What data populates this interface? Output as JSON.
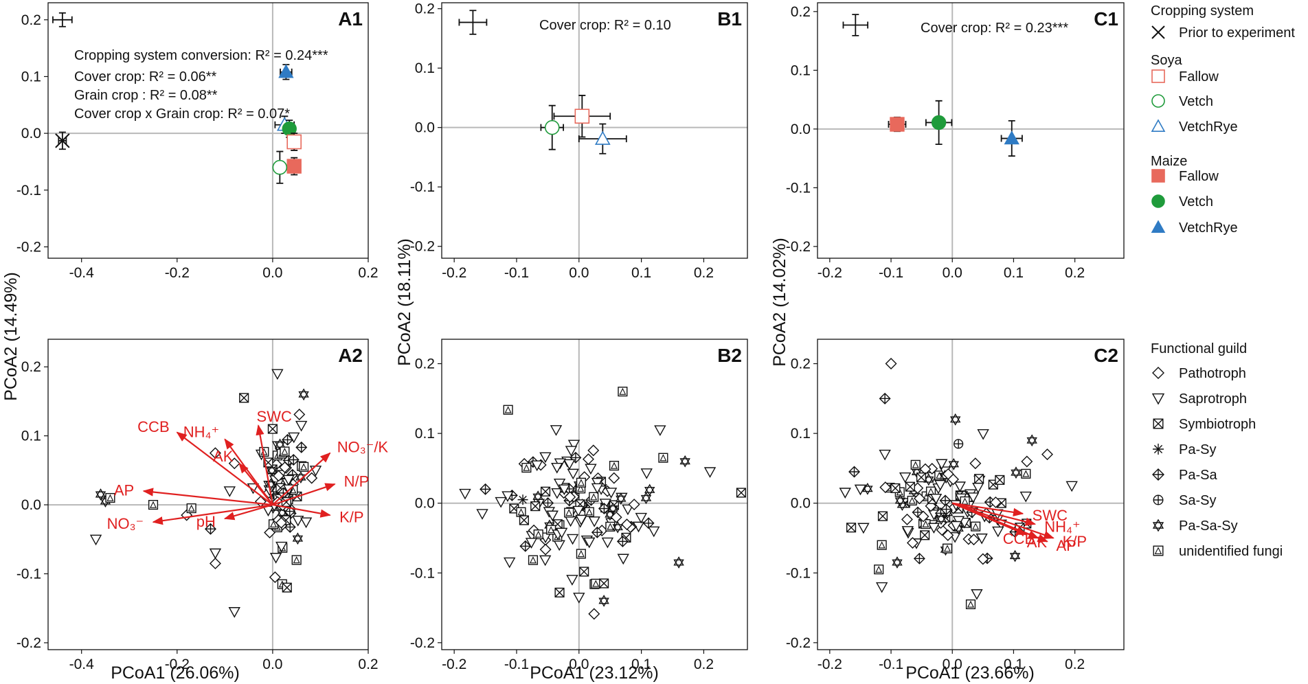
{
  "colors": {
    "fallow": "#e8695c",
    "vetch": "#1f9b3b",
    "vetchrye": "#2f7bc4",
    "prior": "#111111",
    "vector": "#e02020",
    "zero_line": "#b8b8b8"
  },
  "legend": {
    "cropping": {
      "title": "Cropping system",
      "prior_label": "Prior to experiment",
      "soya_header": "Soya",
      "maize_header": "Maize",
      "items": [
        {
          "label": "Fallow",
          "shape": "square",
          "filled": false,
          "color": "#e8695c"
        },
        {
          "label": "Vetch",
          "shape": "circle",
          "filled": false,
          "color": "#1f9b3b"
        },
        {
          "label": "VetchRye",
          "shape": "triangle",
          "filled": false,
          "color": "#2f7bc4"
        },
        {
          "label": "Fallow",
          "shape": "square",
          "filled": true,
          "color": "#e8695c"
        },
        {
          "label": "Vetch",
          "shape": "circle",
          "filled": true,
          "color": "#1f9b3b"
        },
        {
          "label": "VetchRye",
          "shape": "triangle",
          "filled": true,
          "color": "#2f7bc4"
        }
      ]
    },
    "guild": {
      "title": "Functional guild",
      "items": [
        {
          "label": "Pathotroph",
          "shape": "diamond"
        },
        {
          "label": "Saprotroph",
          "shape": "down-triangle"
        },
        {
          "label": "Symbiotroph",
          "shape": "boxx"
        },
        {
          "label": "Pa-Sy",
          "shape": "asterisk"
        },
        {
          "label": "Pa-Sa",
          "shape": "diamondplus"
        },
        {
          "label": "Sa-Sy",
          "shape": "circleplus"
        },
        {
          "label": "Pa-Sa-Sy",
          "shape": "star6"
        },
        {
          "label": "unidentified fungi",
          "shape": "boxtri"
        }
      ]
    }
  },
  "chart_data": [
    {
      "id": "A1",
      "type": "scatter",
      "panel_label": "A1",
      "xlim": [
        -0.47,
        0.2
      ],
      "ylim": [
        -0.22,
        0.23
      ],
      "xticks": [
        -0.4,
        -0.2,
        0.0,
        0.2
      ],
      "xtick_labels": [
        "-0.4",
        "-0.2",
        "0.0",
        "0.2"
      ],
      "yticks": [
        0.2,
        0.1,
        0.0,
        -0.1,
        -0.2
      ],
      "ytick_labels": [
        "0.2",
        "0.1",
        "0.0",
        "-0.1",
        "-0.2"
      ],
      "annotations": [
        "Cropping system conversion:   R² = 0.24***",
        "Cover crop: R² = 0.06**",
        "Grain crop : R² = 0.08**",
        "Cover crop x Grain crop: R² = 0.07*"
      ],
      "points": [
        {
          "group": "Prior (top)",
          "shape": "cross",
          "x": -0.44,
          "y": 0.2,
          "xerr": 0.02,
          "yerr": 0.012
        },
        {
          "group": "Prior (bottom)",
          "shape": "x",
          "x": -0.44,
          "y": -0.013,
          "xerr": 0.008,
          "yerr": 0.015
        },
        {
          "group": "Soya VetchRye",
          "shape": "triangle",
          "filled": false,
          "color": "#2f7bc4",
          "x": 0.025,
          "y": 0.015,
          "xerr": 0.02,
          "yerr": 0.015
        },
        {
          "group": "Maize Vetch",
          "shape": "circle",
          "filled": true,
          "color": "#1f9b3b",
          "x": 0.035,
          "y": 0.008,
          "xerr": 0.01,
          "yerr": 0.015
        },
        {
          "group": "Soya Fallow",
          "shape": "square",
          "filled": false,
          "color": "#e8695c",
          "x": 0.045,
          "y": -0.015,
          "xerr": 0.012,
          "yerr": 0.015
        },
        {
          "group": "Maize Fallow",
          "shape": "square",
          "filled": true,
          "color": "#e8695c",
          "x": 0.045,
          "y": -0.058,
          "xerr": 0.01,
          "yerr": 0.015
        },
        {
          "group": "Soya Vetch",
          "shape": "circle",
          "filled": false,
          "color": "#1f9b3b",
          "x": 0.015,
          "y": -0.06,
          "xerr": 0.01,
          "yerr": 0.028
        },
        {
          "group": "Maize VetchRye",
          "shape": "triangle",
          "filled": true,
          "color": "#2f7bc4",
          "x": 0.028,
          "y": 0.108,
          "xerr": 0.012,
          "yerr": 0.013
        }
      ]
    },
    {
      "id": "B1",
      "type": "scatter",
      "panel_label": "B1",
      "xlim": [
        -0.22,
        0.27
      ],
      "ylim": [
        -0.22,
        0.21
      ],
      "xticks": [
        -0.2,
        -0.1,
        0.0,
        0.1,
        0.2
      ],
      "xtick_labels": [
        "-0.2",
        "-0.1",
        "0.0",
        "0.1",
        "0.2"
      ],
      "yticks": [
        0.2,
        0.1,
        0.0,
        -0.1,
        -0.2
      ],
      "ytick_labels": [
        "0.2",
        "0.1",
        "0.0",
        "-0.1",
        "-0.2"
      ],
      "annotations": [
        "Cover crop: R² = 0.10"
      ],
      "points": [
        {
          "group": "Prior",
          "shape": "cross",
          "x": -0.17,
          "y": 0.177,
          "xerr": 0.022,
          "yerr": 0.02
        },
        {
          "group": "Soya Vetch",
          "shape": "circle",
          "filled": false,
          "color": "#1f9b3b",
          "x": -0.043,
          "y": 0.0,
          "xerr": 0.018,
          "yerr": 0.037
        },
        {
          "group": "Soya Fallow",
          "shape": "square",
          "filled": false,
          "color": "#e8695c",
          "x": 0.005,
          "y": 0.019,
          "xerr": 0.045,
          "yerr": 0.035
        },
        {
          "group": "Soya VetchRye",
          "shape": "triangle",
          "filled": false,
          "color": "#2f7bc4",
          "x": 0.038,
          "y": -0.019,
          "xerr": 0.038,
          "yerr": 0.025
        }
      ]
    },
    {
      "id": "C1",
      "type": "scatter",
      "panel_label": "C1",
      "xlim": [
        -0.22,
        0.28
      ],
      "ylim": [
        -0.22,
        0.215
      ],
      "xticks": [
        -0.2,
        -0.1,
        0.0,
        0.1,
        0.2
      ],
      "xtick_labels": [
        "-0.2",
        "-0.1",
        "0.0",
        "0.1",
        "0.2"
      ],
      "yticks": [
        0.2,
        0.1,
        0.0,
        -0.1,
        -0.2
      ],
      "ytick_labels": [
        "0.2",
        "0.1",
        "0.0",
        "-0.1",
        "-0.2"
      ],
      "annotations": [
        "Cover crop: R² = 0.23***"
      ],
      "points": [
        {
          "group": "Prior",
          "shape": "cross",
          "x": -0.158,
          "y": 0.177,
          "xerr": 0.02,
          "yerr": 0.018
        },
        {
          "group": "Maize Fallow",
          "shape": "square",
          "filled": true,
          "color": "#e8695c",
          "x": -0.09,
          "y": 0.008,
          "xerr": 0.014,
          "yerr": 0.012
        },
        {
          "group": "Maize Vetch",
          "shape": "circle",
          "filled": true,
          "color": "#1f9b3b",
          "x": -0.022,
          "y": 0.011,
          "xerr": 0.021,
          "yerr": 0.037
        },
        {
          "group": "Maize VetchRye",
          "shape": "triangle",
          "filled": true,
          "color": "#2f7bc4",
          "x": 0.097,
          "y": -0.016,
          "xerr": 0.017,
          "yerr": 0.03
        }
      ]
    },
    {
      "id": "A2",
      "type": "biplot",
      "panel_label": "A2",
      "xlim": [
        -0.47,
        0.2
      ],
      "ylim": [
        -0.21,
        0.24
      ],
      "xticks": [
        -0.4,
        -0.2,
        0.0,
        0.2
      ],
      "xtick_labels": [
        "-0.4",
        "-0.2",
        "0.0",
        "0.2"
      ],
      "yticks": [
        0.2,
        0.1,
        0.0,
        -0.1,
        -0.2
      ],
      "ytick_labels": [
        "0.2",
        "0.1",
        "0.0",
        "-0.1",
        "-0.2"
      ],
      "cloud_center": [
        0.025,
        0.015
      ],
      "cloud_spread": [
        0.022,
        0.045
      ],
      "cloud_count": 85,
      "points": [
        {
          "shape": "down-triangle",
          "x": 0.01,
          "y": 0.19
        },
        {
          "shape": "boxx",
          "x": -0.06,
          "y": 0.155
        },
        {
          "shape": "star6",
          "x": 0.065,
          "y": 0.16
        },
        {
          "shape": "boxx",
          "x": 0.0,
          "y": 0.11
        },
        {
          "shape": "diamond",
          "x": -0.12,
          "y": 0.075
        },
        {
          "shape": "down-triangle",
          "x": -0.09,
          "y": 0.02
        },
        {
          "shape": "diamond",
          "x": -0.08,
          "y": 0.06
        },
        {
          "shape": "star6",
          "x": -0.36,
          "y": 0.015
        },
        {
          "shape": "star6",
          "x": -0.35,
          "y": 0.005
        },
        {
          "shape": "boxtri",
          "x": -0.34,
          "y": 0.01
        },
        {
          "shape": "boxtri",
          "x": -0.25,
          "y": 0.0
        },
        {
          "shape": "down-triangle",
          "x": -0.37,
          "y": -0.05
        },
        {
          "shape": "diamond",
          "x": -0.18,
          "y": -0.015
        },
        {
          "shape": "boxtri",
          "x": -0.17,
          "y": -0.005
        },
        {
          "shape": "diamondplus",
          "x": -0.13,
          "y": -0.035
        },
        {
          "shape": "down-triangle",
          "x": -0.12,
          "y": -0.07
        },
        {
          "shape": "diamond",
          "x": -0.12,
          "y": -0.085
        },
        {
          "shape": "down-triangle",
          "x": -0.08,
          "y": -0.155
        },
        {
          "shape": "down-triangle",
          "x": 0.06,
          "y": 0.115
        },
        {
          "shape": "down-triangle",
          "x": 0.09,
          "y": 0.05
        },
        {
          "shape": "diamond",
          "x": 0.005,
          "y": -0.105
        },
        {
          "shape": "boxtri",
          "x": 0.02,
          "y": -0.115
        },
        {
          "shape": "boxx",
          "x": 0.03,
          "y": -0.12
        },
        {
          "shape": "boxtri",
          "x": 0.05,
          "y": -0.08
        },
        {
          "shape": "down-triangle",
          "x": 0.07,
          "y": -0.025
        },
        {
          "shape": "boxtri",
          "x": 0.065,
          "y": 0.055
        }
      ],
      "vectors": [
        {
          "label": "CCB",
          "x": -0.2,
          "y": 0.105,
          "label_anchor": "end"
        },
        {
          "label": "NH₄⁺",
          "x": -0.1,
          "y": 0.095,
          "label_anchor": "end"
        },
        {
          "label": "SWC",
          "x": -0.03,
          "y": 0.115,
          "label_anchor": "start"
        },
        {
          "label": "AK",
          "x": -0.07,
          "y": 0.06,
          "label_anchor": "end"
        },
        {
          "label": "NO₃⁻/K",
          "x": 0.12,
          "y": 0.075,
          "label_anchor": "start"
        },
        {
          "label": "N/P",
          "x": 0.13,
          "y": 0.03,
          "label_anchor": "start"
        },
        {
          "label": "AP",
          "x": -0.27,
          "y": 0.02,
          "label_anchor": "end"
        },
        {
          "label": "K/P",
          "x": 0.12,
          "y": -0.015,
          "label_anchor": "start"
        },
        {
          "label": "NO₃⁻",
          "x": -0.25,
          "y": -0.025,
          "label_anchor": "end"
        },
        {
          "label": "pH",
          "x": -0.1,
          "y": -0.02,
          "label_anchor": "end"
        }
      ]
    },
    {
      "id": "B2",
      "type": "scatter",
      "panel_label": "B2",
      "xlim": [
        -0.22,
        0.27
      ],
      "ylim": [
        -0.21,
        0.235
      ],
      "xticks": [
        -0.2,
        -0.1,
        0.0,
        0.1,
        0.2
      ],
      "xtick_labels": [
        "-0.2",
        "-0.1",
        "0.0",
        "0.1",
        "0.2"
      ],
      "yticks": [
        0.2,
        0.1,
        0.0,
        -0.1,
        -0.2
      ],
      "ytick_labels": [
        "0.2",
        "0.1",
        "0.0",
        "-0.1",
        "-0.2"
      ],
      "cloud_center": [
        -0.01,
        -0.01
      ],
      "cloud_spread": [
        0.055,
        0.045
      ],
      "cloud_count": 130,
      "points": [
        {
          "shape": "boxtri",
          "x": 0.07,
          "y": 0.16
        },
        {
          "shape": "down-triangle",
          "x": 0.13,
          "y": 0.105
        },
        {
          "shape": "boxtri",
          "x": 0.135,
          "y": 0.065
        },
        {
          "shape": "star6",
          "x": 0.17,
          "y": 0.06
        },
        {
          "shape": "down-triangle",
          "x": 0.21,
          "y": 0.045
        },
        {
          "shape": "boxx",
          "x": 0.26,
          "y": 0.015
        },
        {
          "shape": "down-triangle",
          "x": 0.12,
          "y": -0.04
        },
        {
          "shape": "star6",
          "x": 0.16,
          "y": -0.085
        },
        {
          "shape": "diamondplus",
          "x": -0.15,
          "y": 0.02
        },
        {
          "shape": "down-triangle",
          "x": -0.155,
          "y": -0.015
        },
        {
          "shape": "asterisk",
          "x": -0.09,
          "y": 0.005
        },
        {
          "shape": "star6",
          "x": 0.04,
          "y": -0.14
        },
        {
          "shape": "down-triangle",
          "x": 0.0,
          "y": -0.135
        },
        {
          "shape": "boxx",
          "x": 0.04,
          "y": -0.115
        }
      ]
    },
    {
      "id": "C2",
      "type": "biplot",
      "panel_label": "C2",
      "xlim": [
        -0.22,
        0.28
      ],
      "ylim": [
        -0.21,
        0.235
      ],
      "xticks": [
        -0.2,
        -0.1,
        0.0,
        0.1,
        0.2
      ],
      "xtick_labels": [
        "-0.2",
        "-0.1",
        "0.0",
        "0.1",
        "0.2"
      ],
      "yticks": [
        0.2,
        0.1,
        0.0,
        -0.1,
        -0.2
      ],
      "ytick_labels": [
        "0.2",
        "0.1",
        "0.0",
        "-0.1",
        "-0.2"
      ],
      "cloud_center": [
        0.0,
        0.0
      ],
      "cloud_spread": [
        0.05,
        0.035
      ],
      "cloud_count": 120,
      "points": [
        {
          "shape": "diamond",
          "x": -0.1,
          "y": 0.2
        },
        {
          "shape": "diamondplus",
          "x": -0.11,
          "y": 0.15
        },
        {
          "shape": "down-triangle",
          "x": -0.11,
          "y": 0.07
        },
        {
          "shape": "boxtri",
          "x": -0.06,
          "y": 0.055
        },
        {
          "shape": "diamond",
          "x": 0.155,
          "y": 0.07
        },
        {
          "shape": "star6",
          "x": 0.13,
          "y": 0.09
        },
        {
          "shape": "down-triangle",
          "x": 0.195,
          "y": 0.025
        },
        {
          "shape": "down-triangle",
          "x": 0.12,
          "y": 0.01
        },
        {
          "shape": "star6",
          "x": 0.005,
          "y": 0.12
        },
        {
          "shape": "circleplus",
          "x": 0.01,
          "y": 0.085
        },
        {
          "shape": "boxx",
          "x": -0.165,
          "y": -0.035
        },
        {
          "shape": "down-triangle",
          "x": -0.145,
          "y": -0.035
        },
        {
          "shape": "diamondplus",
          "x": -0.16,
          "y": 0.045
        },
        {
          "shape": "down-triangle",
          "x": -0.15,
          "y": 0.02
        },
        {
          "shape": "boxtri",
          "x": -0.115,
          "y": -0.06
        },
        {
          "shape": "star6",
          "x": -0.09,
          "y": -0.085
        },
        {
          "shape": "down-triangle",
          "x": -0.115,
          "y": -0.12
        },
        {
          "shape": "boxtri",
          "x": -0.12,
          "y": -0.095
        },
        {
          "shape": "boxtri",
          "x": 0.03,
          "y": -0.145
        },
        {
          "shape": "down-triangle",
          "x": 0.04,
          "y": -0.13
        },
        {
          "shape": "boxx",
          "x": 0.11,
          "y": -0.035
        },
        {
          "shape": "diamond",
          "x": 0.05,
          "y": -0.08
        }
      ],
      "vectors": [
        {
          "label": "SWC",
          "x": 0.115,
          "y": -0.015,
          "label_anchor": "start"
        },
        {
          "label": "NH₄⁺",
          "x": 0.135,
          "y": -0.03,
          "label_anchor": "start"
        },
        {
          "label": "K/P",
          "x": 0.165,
          "y": -0.05,
          "label_anchor": "start"
        },
        {
          "label": "AP",
          "x": 0.155,
          "y": -0.055,
          "label_anchor": "start"
        },
        {
          "label": "AK",
          "x": 0.14,
          "y": -0.05,
          "label_anchor": "end"
        },
        {
          "label": "CCB",
          "x": 0.12,
          "y": -0.045,
          "label_anchor": "end"
        }
      ]
    }
  ],
  "axis_titles": {
    "col_a_x": "PCoA1 (26.06%)",
    "col_b_x": "PCoA1 (23.12%)",
    "col_c_x": "PCoA1 (23.66%)",
    "col_a_y": "PCoA2 (14.49%)",
    "col_b_y": "PCoA2 (18.11%)",
    "col_c_y": "PCoA2 (14.02%)"
  }
}
